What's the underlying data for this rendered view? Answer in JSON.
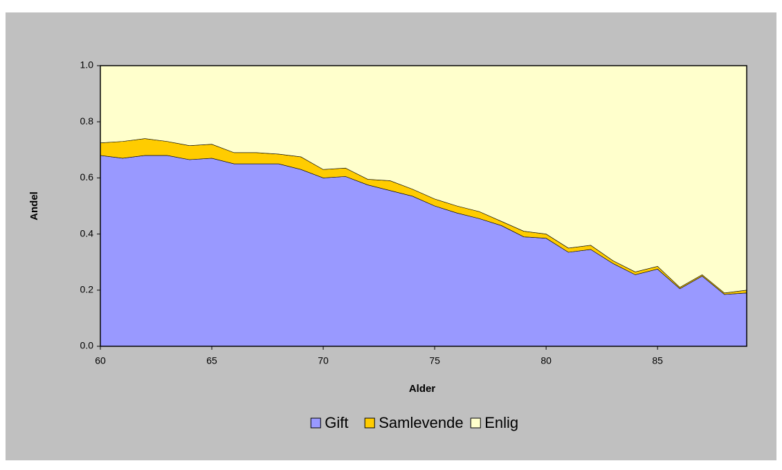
{
  "chart_data": {
    "type": "stacked-area",
    "x_label": "Alder",
    "y_label": "Andel",
    "x": [
      60,
      61,
      62,
      63,
      64,
      65,
      66,
      67,
      68,
      69,
      70,
      71,
      72,
      73,
      74,
      75,
      76,
      77,
      78,
      79,
      80,
      81,
      82,
      83,
      84,
      85,
      86,
      87,
      88,
      89
    ],
    "series": [
      {
        "name": "Gift",
        "color": "#9999ff",
        "values": [
          0.68,
          0.67,
          0.68,
          0.68,
          0.665,
          0.67,
          0.65,
          0.65,
          0.65,
          0.63,
          0.6,
          0.605,
          0.575,
          0.555,
          0.535,
          0.5,
          0.475,
          0.455,
          0.43,
          0.39,
          0.385,
          0.335,
          0.345,
          0.295,
          0.255,
          0.275,
          0.205,
          0.25,
          0.185,
          0.19
        ]
      },
      {
        "name": "Samlevende",
        "color": "#ffcc00",
        "values": [
          0.045,
          0.06,
          0.06,
          0.05,
          0.05,
          0.05,
          0.04,
          0.04,
          0.035,
          0.045,
          0.03,
          0.03,
          0.02,
          0.035,
          0.025,
          0.025,
          0.025,
          0.025,
          0.015,
          0.02,
          0.015,
          0.015,
          0.015,
          0.01,
          0.01,
          0.01,
          0.005,
          0.005,
          0.005,
          0.01
        ]
      },
      {
        "name": "Enlig",
        "color": "#ffffcc",
        "values": [
          0.275,
          0.27,
          0.26,
          0.27,
          0.285,
          0.28,
          0.31,
          0.31,
          0.315,
          0.325,
          0.37,
          0.365,
          0.405,
          0.41,
          0.44,
          0.475,
          0.5,
          0.52,
          0.555,
          0.59,
          0.6,
          0.65,
          0.64,
          0.695,
          0.735,
          0.715,
          0.79,
          0.745,
          0.81,
          0.8
        ]
      }
    ],
    "xlim": [
      60,
      89
    ],
    "xticks": [
      60,
      65,
      70,
      75,
      80,
      85
    ],
    "ylim": [
      0,
      1
    ],
    "yticks": [
      {
        "value": 0,
        "label": "0.0"
      },
      {
        "value": 0.2,
        "label": "0.2"
      },
      {
        "value": 0.4,
        "label": "0.4"
      },
      {
        "value": 0.6,
        "label": "0.6"
      },
      {
        "value": 0.8,
        "label": "0.8"
      },
      {
        "value": 1,
        "label": "1.0"
      }
    ],
    "legend": "bottom"
  }
}
